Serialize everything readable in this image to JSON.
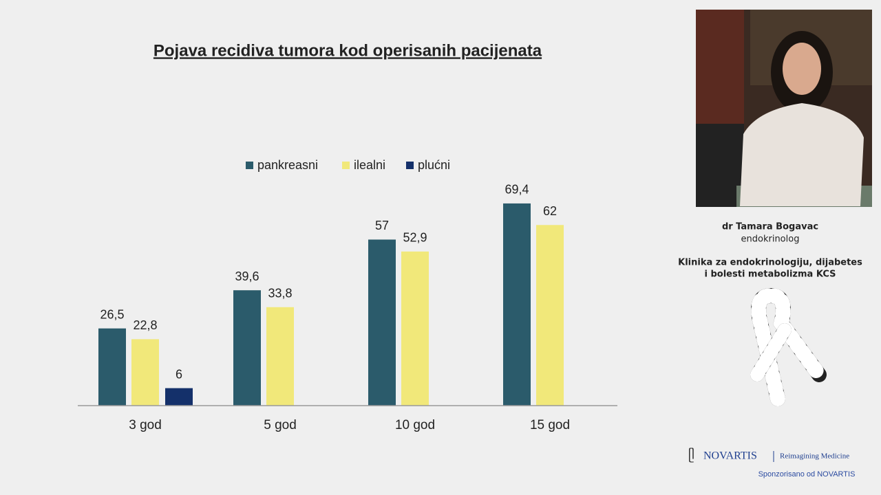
{
  "chart_data": {
    "type": "bar",
    "title": "Pojava recidiva tumora kod operisanih pacijenata",
    "categories": [
      "3 god",
      "5 god",
      "10 god",
      "15 god"
    ],
    "series": [
      {
        "name": "pankreasni",
        "color": "#2b5b6b",
        "values": [
          26.5,
          39.6,
          57,
          69.4
        ],
        "value_labels": [
          "26,5",
          "39,6",
          "57",
          "69,4"
        ]
      },
      {
        "name": "ilealni",
        "color": "#f1e87a",
        "values": [
          22.8,
          33.8,
          52.9,
          62
        ],
        "value_labels": [
          "22,8",
          "33,8",
          "52,9",
          "62"
        ]
      },
      {
        "name": "plućni",
        "color": "#14306a",
        "values": [
          6,
          null,
          null,
          null
        ],
        "value_labels": [
          "6",
          null,
          null,
          null
        ]
      }
    ],
    "ylim": [
      0,
      80
    ],
    "legend": "top"
  },
  "speaker": {
    "name": "dr Tamara Bogavac",
    "role": "endokrinolog",
    "institution": [
      "Klinika za endokrinologiju, dijabetes",
      "i bolesti metabolizma KCS"
    ]
  },
  "sponsor": {
    "brand": "NOVARTIS",
    "tagline": "Reimagining Medicine",
    "note": "Sponzorisano od NOVARTIS"
  }
}
